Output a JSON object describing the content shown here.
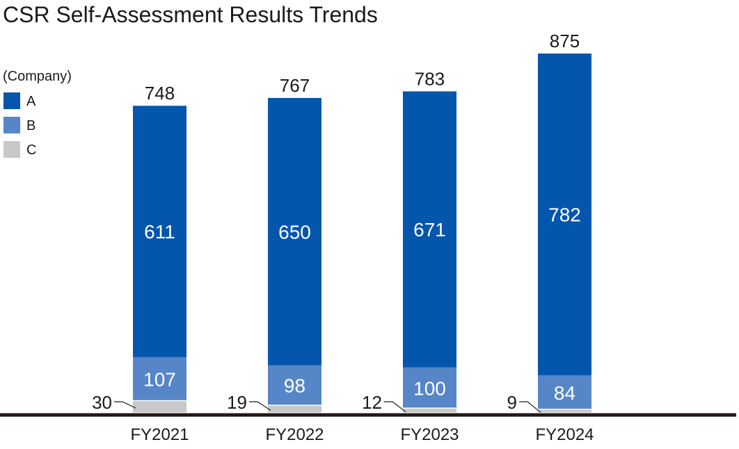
{
  "chart_data": {
    "type": "bar",
    "stacked": true,
    "title": "CSR Self-Assessment Results Trends",
    "legend_title": "(Company)",
    "legend_position": "top-left",
    "categories": [
      "FY2021",
      "FY2022",
      "FY2023",
      "FY2024"
    ],
    "series": [
      {
        "name": "C",
        "color": "#c8c8c8",
        "values": [
          30,
          19,
          12,
          9
        ]
      },
      {
        "name": "B",
        "color": "#5686c8",
        "values": [
          107,
          98,
          100,
          84
        ]
      },
      {
        "name": "A",
        "color": "#0456ad",
        "values": [
          611,
          650,
          671,
          782
        ]
      }
    ],
    "totals": [
      748,
      767,
      783,
      875
    ],
    "ylim": [
      0,
      900
    ],
    "xlabel": "",
    "ylabel": "",
    "grid": false
  }
}
